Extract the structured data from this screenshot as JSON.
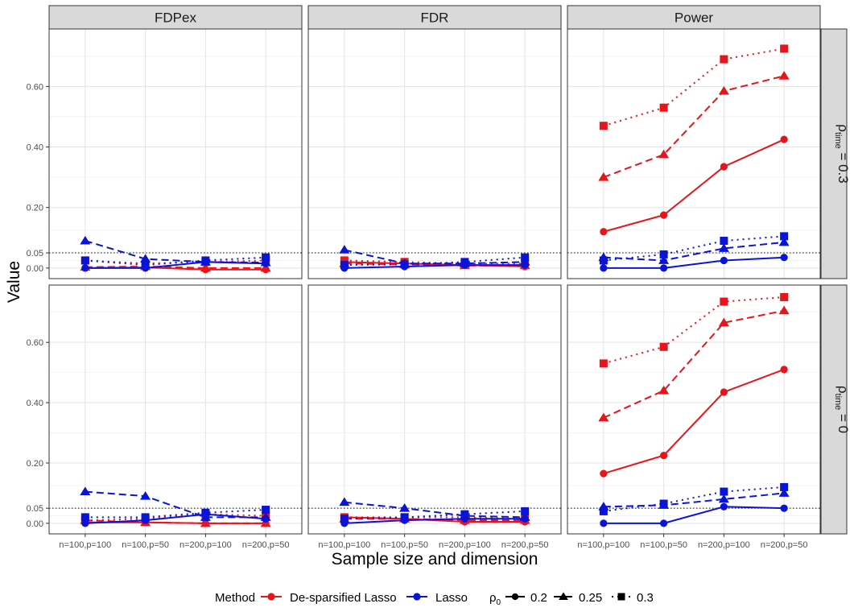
{
  "chart_data": {
    "type": "line",
    "ylabel": "Value",
    "xlabel": "Sample size and dimension",
    "categories": [
      "n=100,p=100",
      "n=100,p=50",
      "n=200,p=100",
      "n=200,p=50"
    ],
    "y_ticks": [
      0.0,
      0.05,
      0.2,
      0.4,
      0.6
    ],
    "y_tick_labels": [
      "0.00",
      "0.05",
      "0.20",
      "0.40",
      "0.60"
    ],
    "ylim": [
      -0.035,
      0.79
    ],
    "reference_line": {
      "y": 0.05,
      "style": "dotted"
    },
    "columns": [
      "FDPex",
      "FDR",
      "Power"
    ],
    "rows": [
      {
        "label_prefix": "ρ",
        "label_sub": "time",
        "label_suffix": " = 0.3"
      },
      {
        "label_prefix": "ρ",
        "label_sub": "time",
        "label_suffix": " = 0"
      }
    ],
    "legend": {
      "placement": "bottom",
      "method_title": "Method",
      "methods": [
        {
          "name": "De-sparsified Lasso",
          "color": "#e8141c"
        },
        {
          "name": "Lasso",
          "color": "#0a14d6"
        }
      ],
      "rho_title_prefix": "ρ",
      "rho_title_sub": "0",
      "rhos": [
        {
          "name": "0.2",
          "shape": "circle",
          "dash": "solid"
        },
        {
          "name": "0.25",
          "shape": "triangle",
          "dash": "dashed"
        },
        {
          "name": "0.3",
          "shape": "square",
          "dash": "dotted"
        }
      ]
    },
    "panels": [
      {
        "row": 0,
        "col": 0,
        "series": [
          {
            "method": "De-sparsified Lasso",
            "rho": "0.2",
            "values": [
              0.0,
              0.002,
              -0.005,
              -0.005
            ]
          },
          {
            "method": "De-sparsified Lasso",
            "rho": "0.25",
            "values": [
              0.003,
              0.005,
              0.0,
              0.0
            ]
          },
          {
            "method": "De-sparsified Lasso",
            "rho": "0.3",
            "values": [
              0.025,
              0.015,
              0.02,
              0.025
            ]
          },
          {
            "method": "Lasso",
            "rho": "0.2",
            "values": [
              0.0,
              0.0,
              0.02,
              0.015
            ]
          },
          {
            "method": "Lasso",
            "rho": "0.25",
            "values": [
              0.09,
              0.03,
              0.02,
              0.018
            ]
          },
          {
            "method": "Lasso",
            "rho": "0.3",
            "values": [
              0.025,
              0.01,
              0.025,
              0.035
            ]
          }
        ]
      },
      {
        "row": 0,
        "col": 1,
        "series": [
          {
            "method": "De-sparsified Lasso",
            "rho": "0.2",
            "values": [
              0.02,
              0.015,
              0.01,
              0.005
            ]
          },
          {
            "method": "De-sparsified Lasso",
            "rho": "0.25",
            "values": [
              0.015,
              0.012,
              0.008,
              0.008
            ]
          },
          {
            "method": "De-sparsified Lasso",
            "rho": "0.3",
            "values": [
              0.025,
              0.02,
              0.015,
              0.015
            ]
          },
          {
            "method": "Lasso",
            "rho": "0.2",
            "values": [
              0.0,
              0.005,
              0.01,
              0.01
            ]
          },
          {
            "method": "Lasso",
            "rho": "0.25",
            "values": [
              0.06,
              0.015,
              0.015,
              0.02
            ]
          },
          {
            "method": "Lasso",
            "rho": "0.3",
            "values": [
              0.01,
              0.012,
              0.02,
              0.035
            ]
          }
        ]
      },
      {
        "row": 0,
        "col": 2,
        "series": [
          {
            "method": "De-sparsified Lasso",
            "rho": "0.2",
            "values": [
              0.12,
              0.175,
              0.335,
              0.425
            ]
          },
          {
            "method": "De-sparsified Lasso",
            "rho": "0.25",
            "values": [
              0.3,
              0.375,
              0.585,
              0.635
            ]
          },
          {
            "method": "De-sparsified Lasso",
            "rho": "0.3",
            "values": [
              0.47,
              0.53,
              0.69,
              0.725
            ]
          },
          {
            "method": "Lasso",
            "rho": "0.2",
            "values": [
              0.0,
              0.0,
              0.025,
              0.035
            ]
          },
          {
            "method": "Lasso",
            "rho": "0.25",
            "values": [
              0.035,
              0.025,
              0.065,
              0.085
            ]
          },
          {
            "method": "Lasso",
            "rho": "0.3",
            "values": [
              0.025,
              0.045,
              0.09,
              0.105
            ]
          }
        ]
      },
      {
        "row": 1,
        "col": 0,
        "series": [
          {
            "method": "De-sparsified Lasso",
            "rho": "0.2",
            "values": [
              0.003,
              0.003,
              0.0,
              0.0
            ]
          },
          {
            "method": "De-sparsified Lasso",
            "rho": "0.25",
            "values": [
              0.01,
              0.003,
              0.0,
              0.0
            ]
          },
          {
            "method": "De-sparsified Lasso",
            "rho": "0.3",
            "values": [
              0.01,
              0.015,
              0.03,
              0.025
            ]
          },
          {
            "method": "Lasso",
            "rho": "0.2",
            "values": [
              0.0,
              0.01,
              0.03,
              0.015
            ]
          },
          {
            "method": "Lasso",
            "rho": "0.25",
            "values": [
              0.105,
              0.09,
              0.02,
              0.02
            ]
          },
          {
            "method": "Lasso",
            "rho": "0.3",
            "values": [
              0.02,
              0.02,
              0.035,
              0.045
            ]
          }
        ]
      },
      {
        "row": 1,
        "col": 1,
        "series": [
          {
            "method": "De-sparsified Lasso",
            "rho": "0.2",
            "values": [
              0.02,
              0.015,
              0.005,
              0.005
            ]
          },
          {
            "method": "De-sparsified Lasso",
            "rho": "0.25",
            "values": [
              0.015,
              0.015,
              0.01,
              0.01
            ]
          },
          {
            "method": "De-sparsified Lasso",
            "rho": "0.3",
            "values": [
              0.02,
              0.02,
              0.02,
              0.015
            ]
          },
          {
            "method": "Lasso",
            "rho": "0.2",
            "values": [
              0.0,
              0.01,
              0.015,
              0.015
            ]
          },
          {
            "method": "Lasso",
            "rho": "0.25",
            "values": [
              0.07,
              0.05,
              0.025,
              0.02
            ]
          },
          {
            "method": "Lasso",
            "rho": "0.3",
            "values": [
              0.015,
              0.02,
              0.03,
              0.04
            ]
          }
        ]
      },
      {
        "row": 1,
        "col": 2,
        "series": [
          {
            "method": "De-sparsified Lasso",
            "rho": "0.2",
            "values": [
              0.165,
              0.225,
              0.435,
              0.51
            ]
          },
          {
            "method": "De-sparsified Lasso",
            "rho": "0.25",
            "values": [
              0.35,
              0.44,
              0.665,
              0.705
            ]
          },
          {
            "method": "De-sparsified Lasso",
            "rho": "0.3",
            "values": [
              0.53,
              0.585,
              0.735,
              0.75
            ]
          },
          {
            "method": "Lasso",
            "rho": "0.2",
            "values": [
              0.0,
              0.0,
              0.055,
              0.05
            ]
          },
          {
            "method": "Lasso",
            "rho": "0.25",
            "values": [
              0.055,
              0.06,
              0.08,
              0.1
            ]
          },
          {
            "method": "Lasso",
            "rho": "0.3",
            "values": [
              0.04,
              0.065,
              0.105,
              0.12
            ]
          }
        ]
      }
    ]
  }
}
